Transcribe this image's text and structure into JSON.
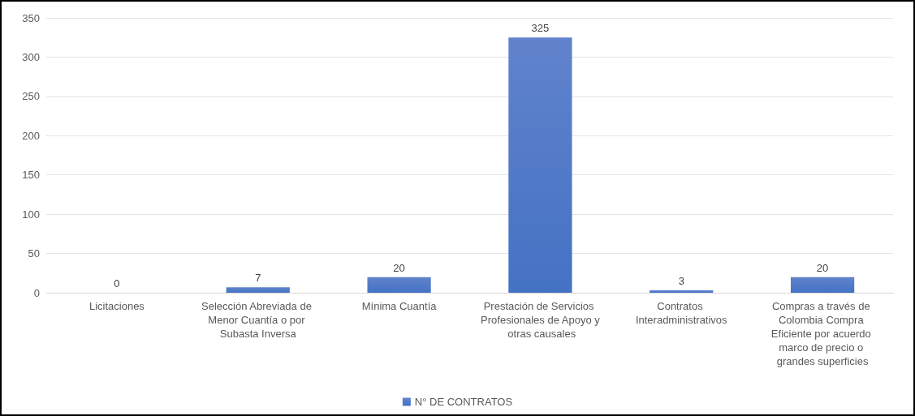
{
  "chart_data": {
    "type": "bar",
    "categories": [
      "Licitaciones",
      "Selección Abreviada de Menor Cuantía o por Subasta Inversa",
      "Mínima Cuantía",
      "Prestación de Servicios Profesionales de Apoyo y otras causales",
      "Contratos Interadministrativos",
      "Compras a través de Colombia Compra Eficiente por acuerdo marco de precio o grandes superficies"
    ],
    "series": [
      {
        "name": "N° DE CONTRATOS",
        "color": "#4472c4",
        "values": [
          0,
          7,
          20,
          325,
          3,
          20
        ]
      }
    ],
    "ylim": [
      0,
      350
    ],
    "yticks": [
      0,
      50,
      100,
      150,
      200,
      250,
      300,
      350
    ],
    "grid": "y",
    "legend": "bottom",
    "data_labels": true
  }
}
